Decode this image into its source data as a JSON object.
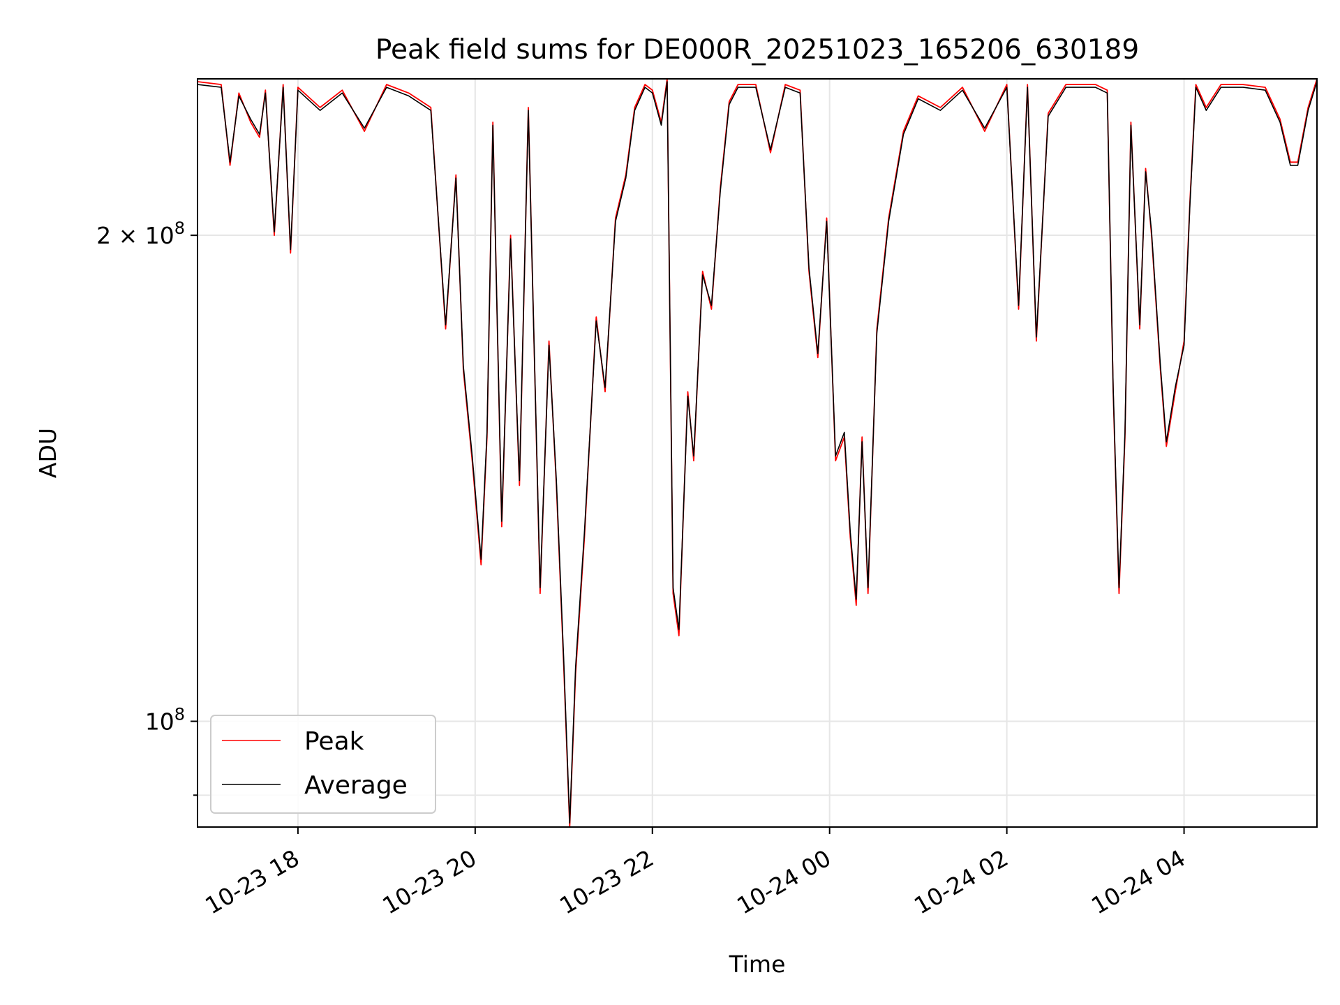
{
  "chart_data": {
    "type": "line",
    "title": "Peak field sums for DE000R_20251023_165206_630189",
    "xlabel": "Time",
    "ylabel": "ADU",
    "x_axis": {
      "kind": "time",
      "range": [
        "2025-10-23 16:52",
        "2025-10-24 05:30"
      ],
      "ticks": [
        {
          "value": "2025-10-23 18:00",
          "label": "10-23 18"
        },
        {
          "value": "2025-10-23 20:00",
          "label": "10-23 20"
        },
        {
          "value": "2025-10-23 22:00",
          "label": "10-23 22"
        },
        {
          "value": "2025-10-24 00:00",
          "label": "10-24 00"
        },
        {
          "value": "2025-10-24 02:00",
          "label": "10-24 02"
        },
        {
          "value": "2025-10-24 04:00",
          "label": "10-24 04"
        }
      ]
    },
    "y_axis": {
      "scale": "log",
      "range": [
        86000000,
        250000000
      ],
      "major_ticks": [
        {
          "value": 100000000,
          "label_base": "10",
          "label_exp": "8"
        },
        {
          "value": 200000000,
          "label_base": "2 × 10",
          "label_exp": "8"
        }
      ],
      "minor_ticks": [
        90000000
      ]
    },
    "grid": true,
    "legend": {
      "position": "lower-left",
      "entries": [
        "Peak",
        "Average"
      ]
    },
    "series": [
      {
        "name": "Peak",
        "color": "#ff0000",
        "points": [
          [
            "2025-10-23 16:52",
            249000000
          ],
          [
            "2025-10-23 17:08",
            248000000
          ],
          [
            "2025-10-23 17:14",
            221000000
          ],
          [
            "2025-10-23 17:20",
            245000000
          ],
          [
            "2025-10-23 17:28",
            235000000
          ],
          [
            "2025-10-23 17:34",
            230000000
          ],
          [
            "2025-10-23 17:38",
            246000000
          ],
          [
            "2025-10-23 17:44",
            200000000
          ],
          [
            "2025-10-23 17:50",
            248000000
          ],
          [
            "2025-10-23 17:55",
            195000000
          ],
          [
            "2025-10-23 18:00",
            247000000
          ],
          [
            "2025-10-23 18:15",
            240000000
          ],
          [
            "2025-10-23 18:30",
            246000000
          ],
          [
            "2025-10-23 18:45",
            232000000
          ],
          [
            "2025-10-23 19:00",
            248000000
          ],
          [
            "2025-10-23 19:15",
            245000000
          ],
          [
            "2025-10-23 19:30",
            240000000
          ],
          [
            "2025-10-23 19:40",
            175000000
          ],
          [
            "2025-10-23 19:47",
            218000000
          ],
          [
            "2025-10-23 19:52",
            165000000
          ],
          [
            "2025-10-23 19:58",
            145000000
          ],
          [
            "2025-10-23 20:04",
            125000000
          ],
          [
            "2025-10-23 20:08",
            150000000
          ],
          [
            "2025-10-23 20:12",
            235000000
          ],
          [
            "2025-10-23 20:18",
            132000000
          ],
          [
            "2025-10-23 20:24",
            200000000
          ],
          [
            "2025-10-23 20:30",
            140000000
          ],
          [
            "2025-10-23 20:36",
            240000000
          ],
          [
            "2025-10-23 20:44",
            120000000
          ],
          [
            "2025-10-23 20:50",
            172000000
          ],
          [
            "2025-10-23 20:55",
            140000000
          ],
          [
            "2025-10-23 21:00",
            108000000
          ],
          [
            "2025-10-23 21:04",
            86000000
          ],
          [
            "2025-10-23 21:08",
            107000000
          ],
          [
            "2025-10-23 21:14",
            130000000
          ],
          [
            "2025-10-23 21:22",
            178000000
          ],
          [
            "2025-10-23 21:28",
            160000000
          ],
          [
            "2025-10-23 21:35",
            205000000
          ],
          [
            "2025-10-23 21:42",
            218000000
          ],
          [
            "2025-10-23 21:48",
            240000000
          ],
          [
            "2025-10-23 21:55",
            248000000
          ],
          [
            "2025-10-23 22:00",
            246000000
          ],
          [
            "2025-10-23 22:06",
            235000000
          ],
          [
            "2025-10-23 22:10",
            250000000
          ],
          [
            "2025-10-23 22:14",
            120000000
          ],
          [
            "2025-10-23 22:18",
            113000000
          ],
          [
            "2025-10-23 22:24",
            160000000
          ],
          [
            "2025-10-23 22:28",
            145000000
          ],
          [
            "2025-10-23 22:34",
            190000000
          ],
          [
            "2025-10-23 22:40",
            180000000
          ],
          [
            "2025-10-23 22:46",
            214000000
          ],
          [
            "2025-10-23 22:52",
            242000000
          ],
          [
            "2025-10-23 22:58",
            248000000
          ],
          [
            "2025-10-23 23:10",
            248000000
          ],
          [
            "2025-10-23 23:20",
            225000000
          ],
          [
            "2025-10-23 23:30",
            248000000
          ],
          [
            "2025-10-23 23:40",
            246000000
          ],
          [
            "2025-10-23 23:46",
            190000000
          ],
          [
            "2025-10-23 23:52",
            168000000
          ],
          [
            "2025-10-23 23:58",
            205000000
          ],
          [
            "2025-10-24 00:04",
            145000000
          ],
          [
            "2025-10-24 00:10",
            150000000
          ],
          [
            "2025-10-24 00:14",
            130000000
          ],
          [
            "2025-10-24 00:18",
            118000000
          ],
          [
            "2025-10-24 00:22",
            150000000
          ],
          [
            "2025-10-24 00:26",
            120000000
          ],
          [
            "2025-10-24 00:32",
            175000000
          ],
          [
            "2025-10-24 00:40",
            205000000
          ],
          [
            "2025-10-24 00:50",
            232000000
          ],
          [
            "2025-10-24 01:00",
            244000000
          ],
          [
            "2025-10-24 01:15",
            240000000
          ],
          [
            "2025-10-24 01:30",
            247000000
          ],
          [
            "2025-10-24 01:45",
            232000000
          ],
          [
            "2025-10-24 02:00",
            248000000
          ],
          [
            "2025-10-24 02:08",
            180000000
          ],
          [
            "2025-10-24 02:14",
            248000000
          ],
          [
            "2025-10-24 02:20",
            172000000
          ],
          [
            "2025-10-24 02:28",
            238000000
          ],
          [
            "2025-10-24 02:40",
            248000000
          ],
          [
            "2025-10-24 03:00",
            248000000
          ],
          [
            "2025-10-24 03:08",
            246000000
          ],
          [
            "2025-10-24 03:12",
            160000000
          ],
          [
            "2025-10-24 03:16",
            120000000
          ],
          [
            "2025-10-24 03:20",
            150000000
          ],
          [
            "2025-10-24 03:24",
            235000000
          ],
          [
            "2025-10-24 03:30",
            175000000
          ],
          [
            "2025-10-24 03:34",
            220000000
          ],
          [
            "2025-10-24 03:38",
            200000000
          ],
          [
            "2025-10-24 03:44",
            165000000
          ],
          [
            "2025-10-24 03:48",
            148000000
          ],
          [
            "2025-10-24 03:54",
            160000000
          ],
          [
            "2025-10-24 04:00",
            172000000
          ],
          [
            "2025-10-24 04:04",
            210000000
          ],
          [
            "2025-10-24 04:08",
            248000000
          ],
          [
            "2025-10-24 04:15",
            240000000
          ],
          [
            "2025-10-24 04:25",
            248000000
          ],
          [
            "2025-10-24 04:40",
            248000000
          ],
          [
            "2025-10-24 04:55",
            247000000
          ],
          [
            "2025-10-24 05:05",
            236000000
          ],
          [
            "2025-10-24 05:12",
            222000000
          ],
          [
            "2025-10-24 05:17",
            222000000
          ],
          [
            "2025-10-24 05:24",
            240000000
          ],
          [
            "2025-10-24 05:30",
            250000000
          ]
        ]
      },
      {
        "name": "Average",
        "color": "#000000",
        "points": [
          [
            "2025-10-23 16:52",
            248000000
          ],
          [
            "2025-10-23 17:08",
            247000000
          ],
          [
            "2025-10-23 17:14",
            222000000
          ],
          [
            "2025-10-23 17:20",
            244000000
          ],
          [
            "2025-10-23 17:28",
            236000000
          ],
          [
            "2025-10-23 17:34",
            231000000
          ],
          [
            "2025-10-23 17:38",
            245000000
          ],
          [
            "2025-10-23 17:44",
            201000000
          ],
          [
            "2025-10-23 17:50",
            247000000
          ],
          [
            "2025-10-23 17:55",
            196000000
          ],
          [
            "2025-10-23 18:00",
            246000000
          ],
          [
            "2025-10-23 18:15",
            239000000
          ],
          [
            "2025-10-23 18:30",
            245000000
          ],
          [
            "2025-10-23 18:45",
            233000000
          ],
          [
            "2025-10-23 19:00",
            247000000
          ],
          [
            "2025-10-23 19:15",
            244000000
          ],
          [
            "2025-10-23 19:30",
            239000000
          ],
          [
            "2025-10-23 19:40",
            176000000
          ],
          [
            "2025-10-23 19:47",
            217000000
          ],
          [
            "2025-10-23 19:52",
            166000000
          ],
          [
            "2025-10-23 19:58",
            146000000
          ],
          [
            "2025-10-23 20:04",
            126000000
          ],
          [
            "2025-10-23 20:08",
            151000000
          ],
          [
            "2025-10-23 20:12",
            234000000
          ],
          [
            "2025-10-23 20:18",
            133000000
          ],
          [
            "2025-10-23 20:24",
            199000000
          ],
          [
            "2025-10-23 20:30",
            141000000
          ],
          [
            "2025-10-23 20:36",
            239000000
          ],
          [
            "2025-10-23 20:44",
            121000000
          ],
          [
            "2025-10-23 20:50",
            171000000
          ],
          [
            "2025-10-23 20:55",
            141000000
          ],
          [
            "2025-10-23 21:00",
            109000000
          ],
          [
            "2025-10-23 21:04",
            86500000
          ],
          [
            "2025-10-23 21:08",
            108000000
          ],
          [
            "2025-10-23 21:14",
            131000000
          ],
          [
            "2025-10-23 21:22",
            177000000
          ],
          [
            "2025-10-23 21:28",
            161000000
          ],
          [
            "2025-10-23 21:35",
            204000000
          ],
          [
            "2025-10-23 21:42",
            217000000
          ],
          [
            "2025-10-23 21:48",
            239000000
          ],
          [
            "2025-10-23 21:55",
            247000000
          ],
          [
            "2025-10-23 22:00",
            245000000
          ],
          [
            "2025-10-23 22:06",
            234000000
          ],
          [
            "2025-10-23 22:10",
            249000000
          ],
          [
            "2025-10-23 22:14",
            121000000
          ],
          [
            "2025-10-23 22:18",
            114000000
          ],
          [
            "2025-10-23 22:24",
            159000000
          ],
          [
            "2025-10-23 22:28",
            146000000
          ],
          [
            "2025-10-23 22:34",
            189000000
          ],
          [
            "2025-10-23 22:40",
            181000000
          ],
          [
            "2025-10-23 22:46",
            213000000
          ],
          [
            "2025-10-23 22:52",
            241000000
          ],
          [
            "2025-10-23 22:58",
            247000000
          ],
          [
            "2025-10-23 23:10",
            247000000
          ],
          [
            "2025-10-23 23:20",
            226000000
          ],
          [
            "2025-10-23 23:30",
            247000000
          ],
          [
            "2025-10-23 23:40",
            245000000
          ],
          [
            "2025-10-23 23:46",
            191000000
          ],
          [
            "2025-10-23 23:52",
            169000000
          ],
          [
            "2025-10-23 23:58",
            204000000
          ],
          [
            "2025-10-24 00:04",
            146000000
          ],
          [
            "2025-10-24 00:10",
            151000000
          ],
          [
            "2025-10-24 00:14",
            131000000
          ],
          [
            "2025-10-24 00:18",
            119000000
          ],
          [
            "2025-10-24 00:22",
            149000000
          ],
          [
            "2025-10-24 00:26",
            121000000
          ],
          [
            "2025-10-24 00:32",
            174000000
          ],
          [
            "2025-10-24 00:40",
            204000000
          ],
          [
            "2025-10-24 00:50",
            231000000
          ],
          [
            "2025-10-24 01:00",
            243000000
          ],
          [
            "2025-10-24 01:15",
            239000000
          ],
          [
            "2025-10-24 01:30",
            246000000
          ],
          [
            "2025-10-24 01:45",
            233000000
          ],
          [
            "2025-10-24 02:00",
            247000000
          ],
          [
            "2025-10-24 02:08",
            181000000
          ],
          [
            "2025-10-24 02:14",
            247000000
          ],
          [
            "2025-10-24 02:20",
            173000000
          ],
          [
            "2025-10-24 02:28",
            237000000
          ],
          [
            "2025-10-24 02:40",
            247000000
          ],
          [
            "2025-10-24 03:00",
            247000000
          ],
          [
            "2025-10-24 03:08",
            245000000
          ],
          [
            "2025-10-24 03:12",
            161000000
          ],
          [
            "2025-10-24 03:16",
            121000000
          ],
          [
            "2025-10-24 03:20",
            151000000
          ],
          [
            "2025-10-24 03:24",
            234000000
          ],
          [
            "2025-10-24 03:30",
            176000000
          ],
          [
            "2025-10-24 03:34",
            219000000
          ],
          [
            "2025-10-24 03:38",
            201000000
          ],
          [
            "2025-10-24 03:44",
            166000000
          ],
          [
            "2025-10-24 03:48",
            149000000
          ],
          [
            "2025-10-24 03:54",
            161000000
          ],
          [
            "2025-10-24 04:00",
            171000000
          ],
          [
            "2025-10-24 04:04",
            209000000
          ],
          [
            "2025-10-24 04:08",
            247000000
          ],
          [
            "2025-10-24 04:15",
            239000000
          ],
          [
            "2025-10-24 04:25",
            247000000
          ],
          [
            "2025-10-24 04:40",
            247000000
          ],
          [
            "2025-10-24 04:55",
            246000000
          ],
          [
            "2025-10-24 05:05",
            235000000
          ],
          [
            "2025-10-24 05:12",
            221000000
          ],
          [
            "2025-10-24 05:17",
            221000000
          ],
          [
            "2025-10-24 05:24",
            239000000
          ],
          [
            "2025-10-24 05:30",
            249000000
          ]
        ]
      }
    ]
  }
}
